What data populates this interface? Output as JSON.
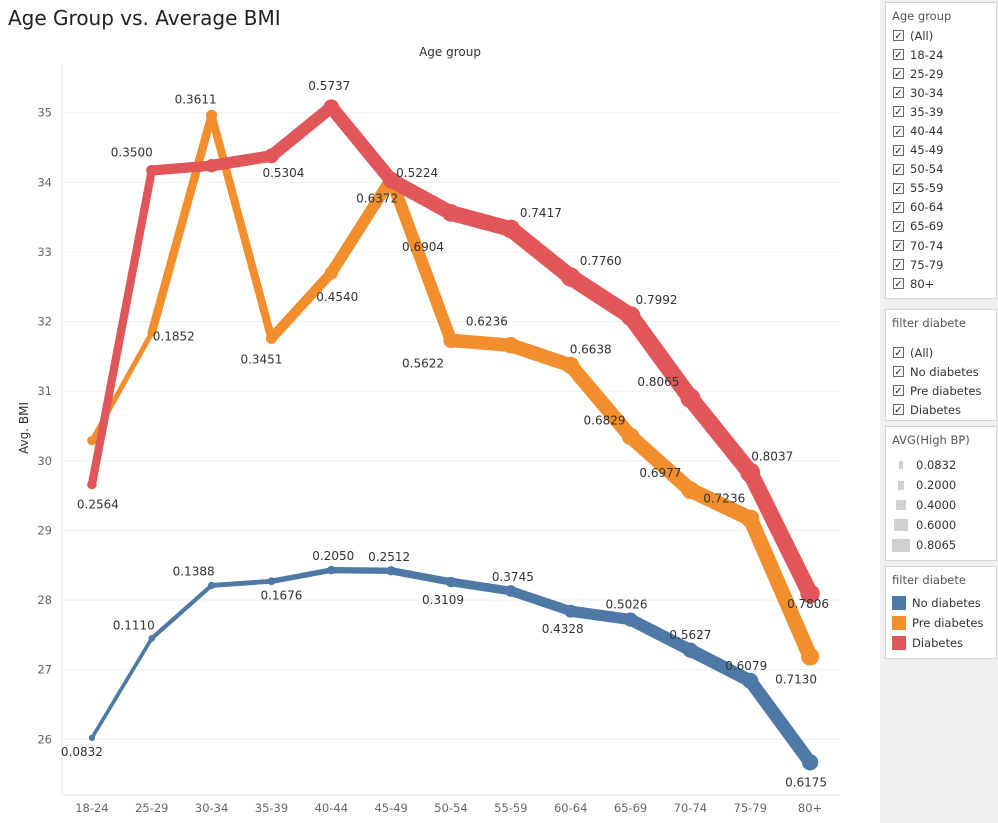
{
  "title": "Age Group vs. Average BMI",
  "chart_data": {
    "type": "line",
    "title": "Age group",
    "xlabel": "",
    "ylabel": "Avg. BMI",
    "ylim": [
      25.2,
      35.7
    ],
    "yticks": [
      26,
      27,
      28,
      29,
      30,
      31,
      32,
      33,
      34,
      35
    ],
    "categories": [
      "18-24",
      "25-29",
      "30-34",
      "35-39",
      "40-44",
      "45-49",
      "50-54",
      "55-59",
      "60-64",
      "65-69",
      "70-74",
      "75-79",
      "80+"
    ],
    "grid": true,
    "legend": "right",
    "size_measure": "AVG(High BP)",
    "series": [
      {
        "name": "No diabetes",
        "color": "#4e79a7",
        "values": [
          26.02,
          27.45,
          28.21,
          28.27,
          28.43,
          28.42,
          28.26,
          28.13,
          27.84,
          27.72,
          27.28,
          26.84,
          25.67
        ],
        "sizes": [
          0.0832,
          0.111,
          0.1388,
          0.1676,
          0.205,
          0.2512,
          0.3109,
          0.3745,
          0.4328,
          0.5026,
          0.5627,
          0.6079,
          0.6175
        ],
        "labels": [
          "0.0832",
          "0.1110",
          "0.1388",
          "0.1676",
          "0.2050",
          "0.2512",
          "0.3109",
          "0.3745",
          "0.4328",
          "0.5026",
          "0.5627",
          "0.6079",
          "0.6175"
        ]
      },
      {
        "name": "Pre diabetes",
        "color": "#f28e2b",
        "values": [
          30.29,
          31.84,
          34.96,
          31.76,
          32.7,
          34.05,
          31.73,
          31.66,
          31.37,
          30.35,
          29.58,
          29.17,
          27.19
        ],
        "sizes": [
          0.2564,
          0.1852,
          0.3611,
          0.3451,
          0.454,
          0.5224,
          0.5622,
          0.6236,
          0.6638,
          0.6829,
          0.6977,
          0.7236,
          0.713
        ],
        "labels": [
          "",
          "0.1852",
          "0.3611",
          "0.3451",
          "0.4540",
          "0.5224",
          "0.5622",
          "0.6236",
          "0.6638",
          "0.6829",
          "0.6977",
          "0.7236",
          "0.7130"
        ]
      },
      {
        "name": "Diabetes",
        "color": "#e15759",
        "values": [
          29.66,
          34.17,
          34.24,
          34.38,
          35.08,
          34.03,
          33.56,
          33.33,
          32.64,
          32.08,
          30.9,
          29.83,
          28.09
        ],
        "sizes": [
          0.2564,
          0.35,
          0.454,
          0.5304,
          0.5737,
          0.6372,
          0.6904,
          0.7417,
          0.776,
          0.7992,
          0.8065,
          0.8037,
          0.7806
        ],
        "labels": [
          "0.2564",
          "0.3500",
          "",
          "0.5304",
          "0.5737",
          "0.6372",
          "0.6904",
          "0.7417",
          "0.7760",
          "0.7992",
          "0.8065",
          "0.8037",
          "0.7806"
        ]
      }
    ]
  },
  "filters": {
    "age_group": {
      "title": "Age group",
      "items": [
        "(All)",
        "18-24",
        "25-29",
        "30-34",
        "35-39",
        "40-44",
        "45-49",
        "50-54",
        "55-59",
        "60-64",
        "65-69",
        "70-74",
        "75-79",
        "80+"
      ]
    },
    "diabetes": {
      "title": "filter diabete",
      "items": [
        "(All)",
        "No diabetes",
        "Pre diabetes",
        "Diabetes"
      ]
    }
  },
  "size_legend": {
    "title": "AVG(High BP)",
    "items": [
      "0.0832",
      "0.2000",
      "0.4000",
      "0.6000",
      "0.8065"
    ],
    "values": [
      0.0832,
      0.2,
      0.4,
      0.6,
      0.8065
    ]
  },
  "color_legend": {
    "title": "filter diabete",
    "items": [
      {
        "label": "No diabetes",
        "color": "#4e79a7"
      },
      {
        "label": "Pre diabetes",
        "color": "#f28e2b"
      },
      {
        "label": "Diabetes",
        "color": "#e15759"
      }
    ]
  }
}
